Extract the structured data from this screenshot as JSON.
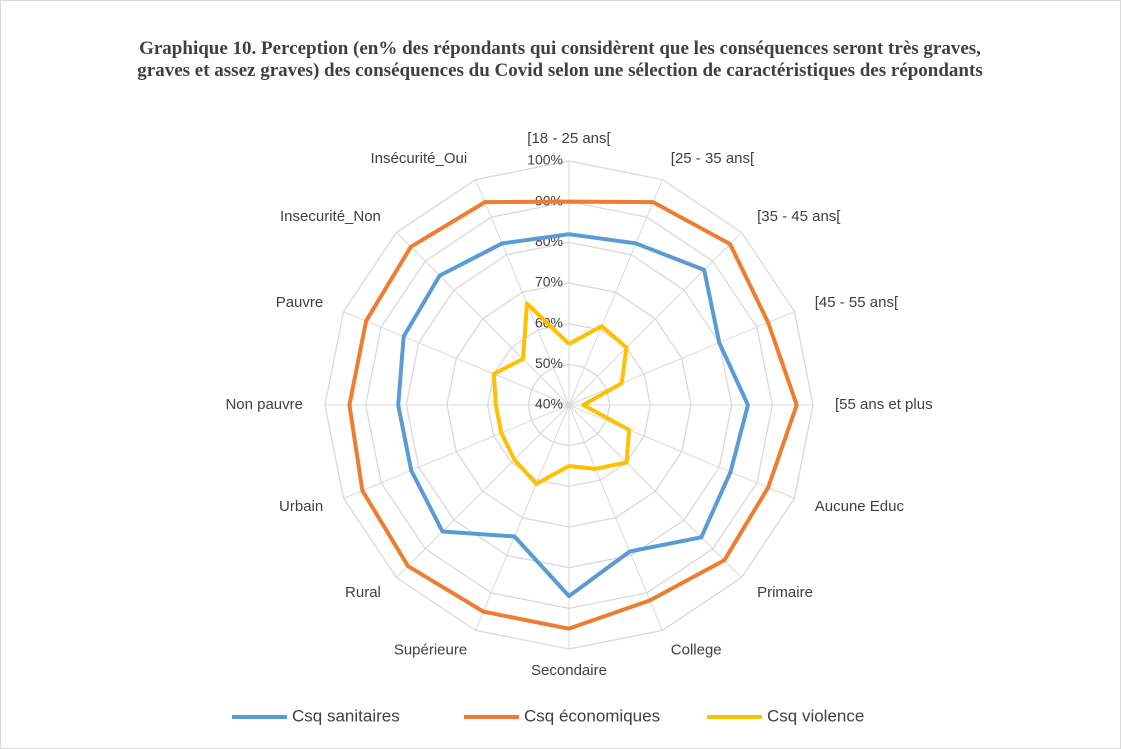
{
  "chart_data": {
    "type": "radar",
    "title": "Graphique 10. Perception (en% des répondants qui considèrent que les conséquences seront très graves, graves et assez graves) des conséquences du Covid selon une sélection de caractéristiques des répondants",
    "categories": [
      "[18 - 25 ans[",
      "[25 - 35 ans[",
      "[35 - 45 ans[",
      "[45 - 55 ans[",
      "[55 ans et plus",
      "Aucune Educ",
      "Primaire",
      "College",
      "Secondaire",
      "Supérieure",
      "Rural",
      "Urbain",
      "Non pauvre",
      "Pauvre",
      "Insecurité_Non",
      "Insécurité_Oui"
    ],
    "series": [
      {
        "name": "Csq sanitaires",
        "color": "#5b9bd5",
        "values": [
          82,
          83,
          87,
          80,
          84,
          83,
          86,
          79,
          87,
          75,
          84,
          82,
          82,
          84,
          85,
          83
        ]
      },
      {
        "name": "Csq économiques",
        "color": "#ed7d31",
        "values": [
          90,
          94,
          96,
          93,
          96,
          93,
          94,
          92,
          95,
          95,
          96,
          95,
          94,
          94,
          95,
          94
        ]
      },
      {
        "name": "Csq violence",
        "color": "#ffc000",
        "values": [
          55,
          61,
          60,
          54,
          43.5,
          56,
          60,
          57,
          55,
          61,
          59,
          58,
          58,
          60,
          56,
          67
        ]
      }
    ],
    "ylim": [
      40,
      100
    ],
    "yticks": [
      {
        "value": 40,
        "label": "40%"
      },
      {
        "value": 50,
        "label": "50%"
      },
      {
        "value": 60,
        "label": "60%"
      },
      {
        "value": 70,
        "label": "70%"
      },
      {
        "value": 80,
        "label": "80%"
      },
      {
        "value": 90,
        "label": "90%"
      },
      {
        "value": 100,
        "label": "100%"
      }
    ],
    "grid": true,
    "legend": "bottom"
  }
}
